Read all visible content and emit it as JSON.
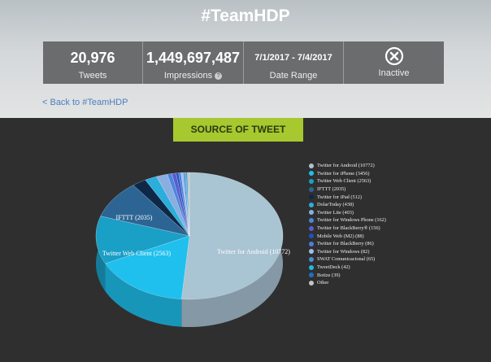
{
  "header": {
    "title": "#TeamHDP",
    "back_link": "< Back to #TeamHDP"
  },
  "stats": [
    {
      "value": "20,976",
      "label": "Tweets"
    },
    {
      "value": "1,449,697,487",
      "label": "Impressions",
      "info_icon": "?"
    },
    {
      "value": "7/1/2017 - 7/4/2017",
      "label": "Date Range"
    },
    {
      "label": "Inactive",
      "icon": "close-circle-icon"
    }
  ],
  "section_button": "SOURCE OF TWEET",
  "chart_data": {
    "type": "pie",
    "title": "SOURCE OF TWEET",
    "legend_position": "right",
    "slices": [
      {
        "name": "Twitter for Android",
        "value": 10772,
        "legend": "Twitter for Android (10772)",
        "label": "Twitter for Android (10772)",
        "color": "#a9c4d3"
      },
      {
        "name": "Twitter for iPhone",
        "value": 3456,
        "legend": "Twitter for iPhone (3456)",
        "color": "#1fc0ee"
      },
      {
        "name": "Twitter Web Client",
        "value": 2563,
        "legend": "Twitter Web Client (2563)",
        "label": "Twitter Web Client (2563)",
        "color": "#1a9fc6"
      },
      {
        "name": "IFTTT",
        "value": 2035,
        "legend": "IFTTT (2035)",
        "label": "IFTTT (2035)",
        "color": "#2c6594"
      },
      {
        "name": "Twitter for iPad",
        "value": 512,
        "legend": "Twitter for iPad (512)",
        "color": "#0e2848"
      },
      {
        "name": "DolarToday",
        "value": 438,
        "legend": "DolarToday (438)",
        "color": "#2aaedb"
      },
      {
        "name": "Twitter Lite",
        "value": 403,
        "legend": "Twitter Lite (403)",
        "color": "#8aaee0"
      },
      {
        "name": "Twitter for Windows Phone",
        "value": 162,
        "legend": "Twitter for Windows Phone (162)",
        "color": "#4a86dc"
      },
      {
        "name": "Twitter for BlackBerry®",
        "value": 156,
        "legend": "Twitter for BlackBerry® (156)",
        "color": "#5a5ecc"
      },
      {
        "name": "Mobile Web (M2)",
        "value": 88,
        "legend": "Mobile Web (M2) (88)",
        "color": "#2150c0"
      },
      {
        "name": "Twitter for BlackBerry",
        "value": 86,
        "legend": "Twitter for BlackBerry (86)",
        "color": "#4a7fdc"
      },
      {
        "name": "Twitter for Windows",
        "value": 82,
        "legend": "Twitter for Windows (82)",
        "color": "#a3bce8"
      },
      {
        "name": "SWAT Comunicacional",
        "value": 65,
        "legend": "SWAT Comunicacional (65)",
        "color": "#4a8ed6"
      },
      {
        "name": "TweetDeck",
        "value": 42,
        "legend": "TweetDeck (42)",
        "color": "#22b6e8"
      },
      {
        "name": "Botize",
        "value": 39,
        "legend": "Botize (39)",
        "color": "#2070c0"
      },
      {
        "name": "Other",
        "value": 77,
        "legend": "Other",
        "color": "#c4c4c4"
      }
    ]
  }
}
